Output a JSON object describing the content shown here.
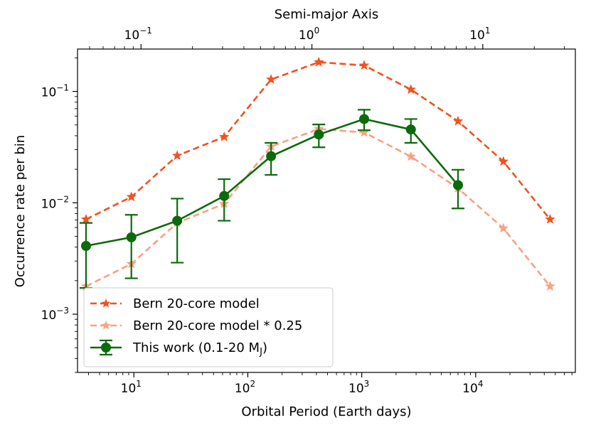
{
  "chart_data": {
    "type": "line",
    "scale": {
      "x": "log",
      "y": "log"
    },
    "xlabel": "Orbital Period (Earth days)",
    "ylabel": "Occurrence rate per bin",
    "top_xlabel": "Semi-major Axis",
    "xlim": [
      3.2,
      75000
    ],
    "ylim": [
      0.0003,
      0.24
    ],
    "x_major_ticks": [
      {
        "value": 10,
        "base": "10",
        "exp": "1"
      },
      {
        "value": 100,
        "base": "10",
        "exp": "2"
      },
      {
        "value": 1000,
        "base": "10",
        "exp": "3"
      },
      {
        "value": 10000,
        "base": "10",
        "exp": "4"
      }
    ],
    "y_major_ticks": [
      {
        "value": 0.001,
        "base": "10",
        "exp": "−3"
      },
      {
        "value": 0.01,
        "base": "10",
        "exp": "−2"
      },
      {
        "value": 0.1,
        "base": "10",
        "exp": "−1"
      }
    ],
    "top_axis": {
      "label": "Semi-major Axis",
      "ticks": [
        {
          "au": 0.1,
          "base": "10",
          "exp": "−1"
        },
        {
          "au": 1,
          "base": "10",
          "exp": "0"
        },
        {
          "au": 10,
          "base": "10",
          "exp": "1"
        }
      ]
    },
    "series": [
      {
        "name": "Bern 20-core model",
        "color": "#f4511e",
        "style": "dashed",
        "marker": "star",
        "x": [
          3.8,
          9.5,
          24,
          62,
          160,
          420,
          1050,
          2700,
          7000,
          17500,
          45000
        ],
        "y": [
          0.0071,
          0.0113,
          0.0265,
          0.039,
          0.128,
          0.183,
          0.171,
          0.104,
          0.054,
          0.0235,
          0.0071
        ]
      },
      {
        "name": "Bern 20-core model * 0.25",
        "color": "#f8a183",
        "style": "dashed",
        "marker": "star",
        "x": [
          3.8,
          9.5,
          24,
          62,
          160,
          420,
          1050,
          2700,
          7000,
          17500,
          45000
        ],
        "y": [
          0.00178,
          0.00283,
          0.0066,
          0.0098,
          0.032,
          0.046,
          0.0428,
          0.026,
          0.0135,
          0.0059,
          0.00178
        ]
      },
      {
        "name": "This work (0.1-20 M",
        "name_sub": "J",
        "name_suffix": ")",
        "color": "#0b6a0b",
        "style": "solid",
        "marker": "circle",
        "x": [
          3.8,
          9.5,
          24,
          62,
          160,
          420,
          1050,
          2700,
          7000
        ],
        "y": [
          0.0041,
          0.0049,
          0.0069,
          0.0115,
          0.0262,
          0.041,
          0.0565,
          0.0455,
          0.0144
        ],
        "err_low": [
          0.00172,
          0.0021,
          0.0029,
          0.0069,
          0.0178,
          0.0315,
          0.0448,
          0.0345,
          0.0089
        ],
        "err_high": [
          0.0066,
          0.0078,
          0.0109,
          0.0163,
          0.0345,
          0.0505,
          0.0685,
          0.0565,
          0.0198
        ]
      }
    ]
  }
}
